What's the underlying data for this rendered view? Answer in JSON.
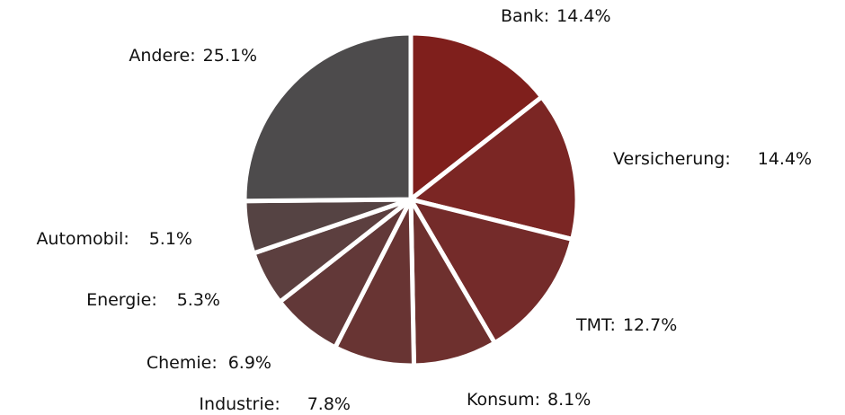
{
  "chart_data": {
    "type": "pie",
    "categories": [
      "Bank",
      "Versicherung",
      "TMT",
      "Konsum",
      "Industrie",
      "Chemie",
      "Energie",
      "Automobil",
      "Andere"
    ],
    "values": [
      14.4,
      14.4,
      12.7,
      8.1,
      7.8,
      6.9,
      5.3,
      5.1,
      25.1
    ],
    "value_labels": [
      "14.4%",
      "14.4%",
      "12.7%",
      "8.1%",
      "7.8%",
      "6.9%",
      "5.3%",
      "5.1%",
      "25.1%"
    ],
    "label_separator": ":",
    "colors": [
      "#7f1f1c",
      "#7b2624",
      "#742b2a",
      "#6e302e",
      "#683433",
      "#623838",
      "#5c3f3f",
      "#554343",
      "#4d4b4c"
    ]
  }
}
